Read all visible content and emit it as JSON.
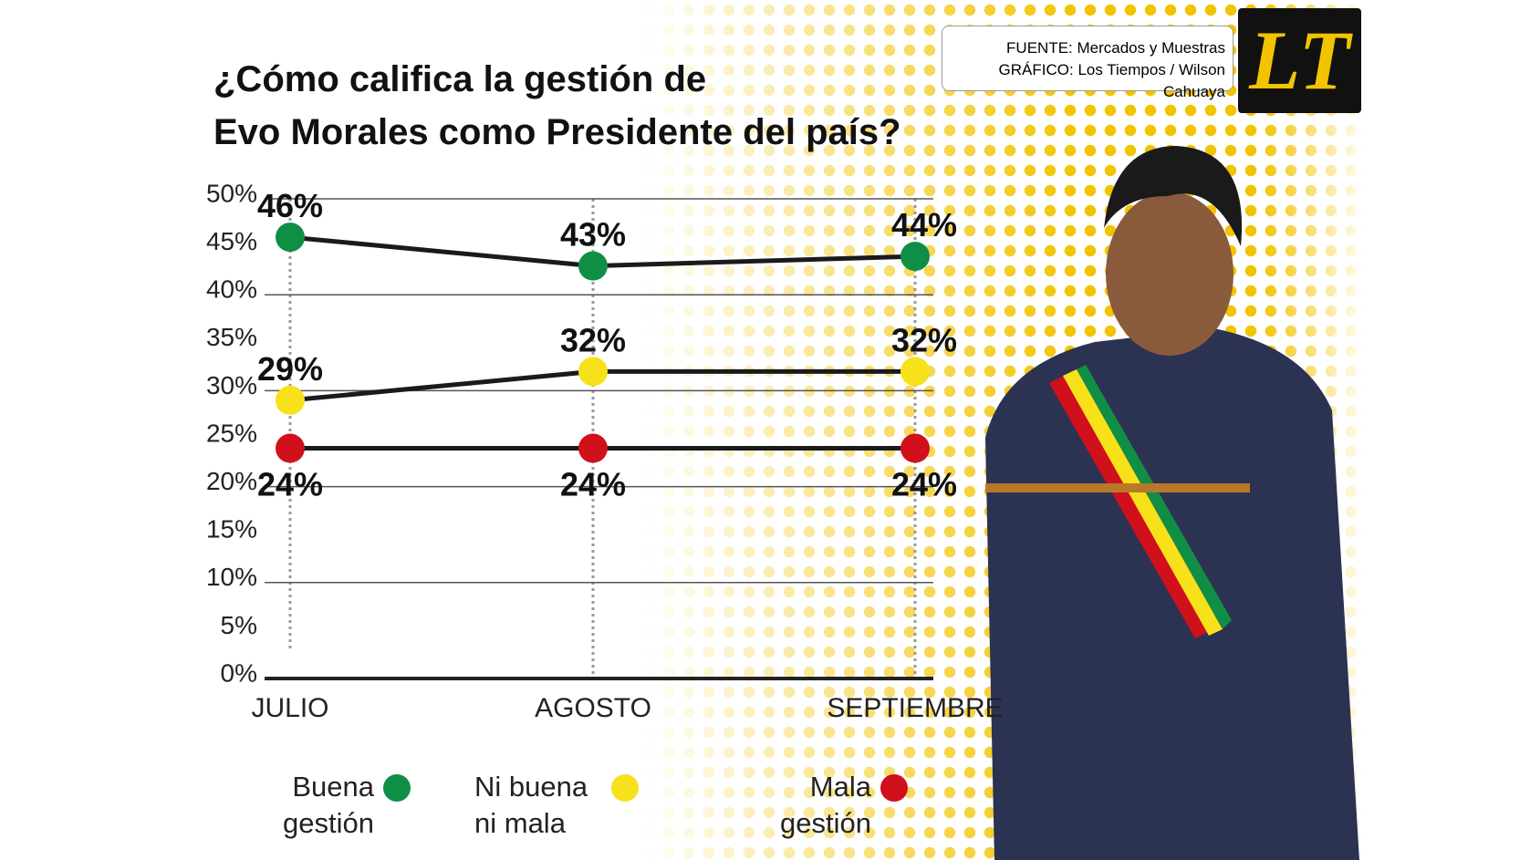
{
  "source": "FUENTE: Mercados y Muestras",
  "credit": "GRÁFICO: Los Tiempos / Wilson Cahuaya",
  "logo": "LT",
  "chart_data": {
    "type": "line",
    "title": "¿Cómo califica la gestión de Evo Morales como Presidente del país?",
    "categories": [
      "JULIO",
      "AGOSTO",
      "SEPTIEMBRE"
    ],
    "series": [
      {
        "name": "Buena gestión",
        "color": "#0f8f45",
        "values": [
          46,
          43,
          44
        ],
        "value_labels": [
          "46%",
          "43%",
          "44%"
        ]
      },
      {
        "name": "Ni buena ni mala",
        "color": "#f7e11a",
        "values": [
          29,
          32,
          32
        ],
        "value_labels": [
          "29%",
          "32%",
          "32%"
        ]
      },
      {
        "name": "Mala gestión",
        "color": "#d0101b",
        "values": [
          24,
          24,
          24
        ],
        "value_labels": [
          "24%",
          "24%",
          "24%"
        ]
      }
    ],
    "ylim": [
      0,
      50
    ],
    "yticks": [
      {
        "value": 0,
        "label": "0%"
      },
      {
        "value": 5,
        "label": "5%"
      },
      {
        "value": 10,
        "label": "10%"
      },
      {
        "value": 15,
        "label": "15%"
      },
      {
        "value": 20,
        "label": "20%"
      },
      {
        "value": 25,
        "label": "25%"
      },
      {
        "value": 30,
        "label": "30%"
      },
      {
        "value": 35,
        "label": "35%"
      },
      {
        "value": 40,
        "label": "40%"
      },
      {
        "value": 45,
        "label": "45%"
      },
      {
        "value": 50,
        "label": "50%"
      }
    ],
    "grid": true
  }
}
